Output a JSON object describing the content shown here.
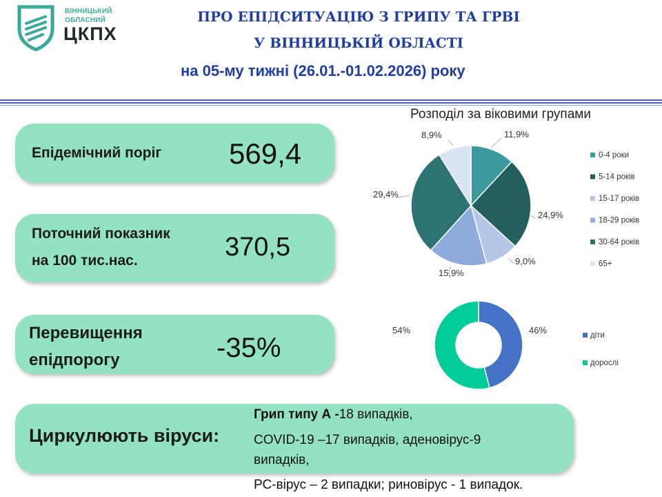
{
  "header": {
    "logo_line1": "ВІННИЦЬКИЙ",
    "logo_line2": "ОБЛАСНИЙ",
    "logo_main": "ЦКПХ",
    "title_line1": "ПРО ЕПІДСИТУАЦІЮ З ГРИПУ ТА ГРВІ",
    "title_line2": "У ВІННИЦЬКІЙ ОБЛАСТІ",
    "subtitle": "на 05-му тижні (26.01.-01.02.2026) року"
  },
  "indicators": {
    "threshold_label": "Епідемічний поріг",
    "threshold_value": "569,4",
    "current_label_line1": "Поточний показник",
    "current_label_line2": "на 100 тис.нас.",
    "current_value": "370,5",
    "excess_label_line1": "Перевищення",
    "excess_label_line2": "епідпорогу",
    "excess_value": "-35%"
  },
  "viruses": {
    "label": "Циркулюють віруси:",
    "line1_bold": "Грип типу А -",
    "line1_rest": "18 випадків,",
    "line2": "COVID-19 –17 випадків, аденовірус-9",
    "line3": "випадків,",
    "line4": "РС-вірус – 2 випадки; риновірус - 1 випадок."
  },
  "chart_data": [
    {
      "type": "pie",
      "title": "Розподіл за віковими групами",
      "categories": [
        "0-4 роки",
        "5-14 років",
        "15-17 років",
        "18-29 років",
        "30-64 років",
        "65+"
      ],
      "values": [
        11.9,
        24.9,
        9.0,
        15.9,
        29.4,
        8.9
      ],
      "labels": [
        "11,9%",
        "24,9%",
        "9,0%",
        "15,9%",
        "29,4%",
        "8,9%"
      ],
      "colors": [
        "#3d9a9c",
        "#235f5e",
        "#b4c7e7",
        "#8faadc",
        "#2e7373",
        "#dae3f3"
      ],
      "legend": "right"
    },
    {
      "type": "pie",
      "title": "",
      "categories": [
        "діти",
        "дорослі"
      ],
      "values": [
        46,
        54
      ],
      "labels": [
        "46%",
        "54%"
      ],
      "colors": [
        "#4472c4",
        "#00cc99"
      ],
      "legend": "right"
    }
  ]
}
